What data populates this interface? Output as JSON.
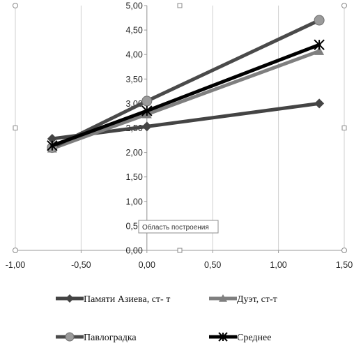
{
  "chart_data": {
    "type": "scatter",
    "title": "",
    "xlabel": "",
    "ylabel": "",
    "xlim": [
      -1.0,
      1.5
    ],
    "ylim": [
      0.0,
      5.0
    ],
    "xticks": [
      "-1,00",
      "-0,50",
      "0,00",
      "0,50",
      "1,00",
      "1,50"
    ],
    "xtick_values": [
      -1.0,
      -0.5,
      0.0,
      0.5,
      1.0,
      1.5
    ],
    "yticks": [
      "0,00",
      "0,50",
      "1,00",
      "1,50",
      "2,00",
      "2,50",
      "3,00",
      "3,50",
      "4,00",
      "4,50",
      "5,00"
    ],
    "ytick_values": [
      0.0,
      0.5,
      1.0,
      1.5,
      2.0,
      2.5,
      3.0,
      3.5,
      4.0,
      4.5,
      5.0
    ],
    "grid": "vertical",
    "legend_position": "bottom",
    "series": [
      {
        "name": "Памяти Азиева, ст- т",
        "marker": "diamond",
        "color": "#444444",
        "x": [
          -0.72,
          0.0,
          1.31
        ],
        "y": [
          2.28,
          2.53,
          3.0
        ]
      },
      {
        "name": "Дуэт, ст-т",
        "marker": "triangle",
        "color": "#7f7f7f",
        "x": [
          -0.72,
          0.0,
          1.31
        ],
        "y": [
          2.08,
          2.78,
          4.07
        ]
      },
      {
        "name": "Павлоградка",
        "marker": "circle",
        "color": "#4a4a4a",
        "x": [
          -0.72,
          0.0,
          1.31
        ],
        "y": [
          2.1,
          3.05,
          4.7
        ]
      },
      {
        "name": "Среднее",
        "marker": "star",
        "color": "#000000",
        "x": [
          -0.72,
          0.0,
          1.31
        ],
        "y": [
          2.14,
          2.85,
          4.2
        ]
      }
    ],
    "tooltip": "Область построения"
  }
}
